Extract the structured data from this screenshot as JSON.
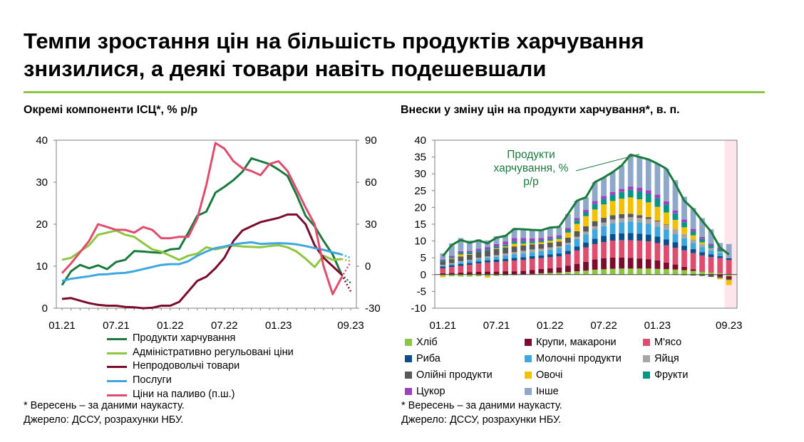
{
  "header": {
    "title_line1": "Темпи зростання цін на більшість продуктів харчування",
    "title_line2": "знизилися, а деякі товари навіть подешевшали"
  },
  "colors": {
    "accent_rule": "#8dc63f",
    "axis": "#7f7f7f",
    "forecast_band": "#fde5ec"
  },
  "chart_data": [
    {
      "type": "line",
      "title": "Окремі компоненти ІСЦ*, % р/р",
      "x_tick_labels": [
        "01.21",
        "07.21",
        "01.22",
        "07.22",
        "01.23",
        "09.23"
      ],
      "x_tick_index": [
        0,
        6,
        12,
        18,
        24,
        32
      ],
      "ylim": [
        0,
        40
      ],
      "y_ticks": [
        "0",
        "10",
        "20",
        "30",
        "40"
      ],
      "y2lim": [
        -30,
        90
      ],
      "y2_ticks": [
        "-30",
        "0",
        "30",
        "60",
        "90"
      ],
      "grid": false,
      "legend_placement": "bottom",
      "series": [
        {
          "name": "Продукти харчування",
          "color": "#1a7a3e",
          "axis": "left",
          "forecast_index": 32,
          "values": [
            5.5,
            8.8,
            10.3,
            9.5,
            10.2,
            9.3,
            11.0,
            11.5,
            13.6,
            13.5,
            13.3,
            13.2,
            14.0,
            14.2,
            18.0,
            22.0,
            23.0,
            27.5,
            28.9,
            30.5,
            32.5,
            35.7,
            35.0,
            34.3,
            33.0,
            31.5,
            27.0,
            22.0,
            19.5,
            16.0,
            12.8,
            8.0,
            6.0
          ]
        },
        {
          "name": "Адміністративно регульовані ціни",
          "color": "#8dc63f",
          "axis": "left",
          "forecast_index": 32,
          "values": [
            11.5,
            12.0,
            13.5,
            15.0,
            17.5,
            18.0,
            18.5,
            17.5,
            17.0,
            15.5,
            14.0,
            13.5,
            12.5,
            11.5,
            12.5,
            13.0,
            14.5,
            14.0,
            14.5,
            14.9,
            14.7,
            14.6,
            14.5,
            14.8,
            15.0,
            14.5,
            13.5,
            11.8,
            9.8,
            12.5,
            11.5,
            11.7,
            11.2
          ]
        },
        {
          "name": "Непродовольчі товари",
          "color": "#7b0c2e",
          "axis": "left",
          "forecast_index": 32,
          "values": [
            2.2,
            2.4,
            1.8,
            1.2,
            0.8,
            0.6,
            0.6,
            0.3,
            0.2,
            0.0,
            0.1,
            0.6,
            0.6,
            1.5,
            4.0,
            6.5,
            7.5,
            9.5,
            12.0,
            16.0,
            18.5,
            19.5,
            20.5,
            21.0,
            21.5,
            22.3,
            22.3,
            20.0,
            15.0,
            12.0,
            10.0,
            8.0,
            4.0
          ]
        },
        {
          "name": "Послуги",
          "color": "#3fa7e0",
          "axis": "left",
          "forecast_index": 32,
          "values": [
            6.5,
            7.0,
            7.3,
            7.6,
            8.0,
            8.1,
            8.3,
            8.4,
            8.8,
            9.3,
            9.8,
            10.3,
            10.5,
            10.5,
            11.2,
            12.5,
            13.5,
            14.3,
            14.7,
            15.2,
            15.5,
            15.7,
            15.3,
            15.4,
            15.5,
            15.4,
            15.2,
            14.8,
            14.3,
            13.9,
            13.3,
            12.8,
            12.0
          ]
        },
        {
          "name": "Ціни на паливо (п.ш.)",
          "color": "#e04c6e",
          "axis": "right",
          "forecast_index": 32,
          "values": [
            -5.0,
            2.0,
            10.0,
            18.0,
            30.0,
            28.0,
            26.0,
            26.0,
            24.0,
            28.0,
            26.0,
            20.0,
            20.0,
            21.0,
            21.0,
            34.0,
            58.0,
            88.0,
            84.0,
            75.0,
            70.0,
            68.0,
            65.0,
            73.0,
            75.0,
            68.0,
            55.0,
            42.0,
            30.0,
            0.0,
            -20.0,
            -8.0,
            3.0
          ]
        }
      ],
      "notes": [
        "* Вересень – за даними наукасту.",
        "Джерело: ДССУ, розрахунки НБУ."
      ]
    },
    {
      "type": "bar",
      "stacked": true,
      "title": "Внески у зміну цін на продукти харчування*, в. п.",
      "x_tick_labels": [
        "01.21",
        "07.21",
        "01.22",
        "07.22",
        "01.23",
        "09.23"
      ],
      "x_tick_index": [
        0,
        6,
        12,
        18,
        24,
        32
      ],
      "ylim": [
        -10,
        40
      ],
      "y_ticks": [
        "-10",
        "-5",
        "0",
        "5",
        "10",
        "15",
        "20",
        "25",
        "30",
        "35",
        "40"
      ],
      "grid": false,
      "forecast_band_from_index": 32,
      "legend_placement": "bottom",
      "line": {
        "name": "Продукти харчування, %",
        "annotation_lines": [
          "Продукти",
          "харчування, %",
          "р/р"
        ],
        "color": "#1a7a3e",
        "values": [
          5.5,
          8.8,
          10.3,
          9.5,
          10.2,
          9.3,
          11.0,
          11.5,
          13.6,
          13.5,
          13.3,
          13.2,
          14.0,
          14.2,
          18.0,
          22.0,
          23.0,
          27.5,
          28.9,
          30.5,
          32.5,
          35.7,
          35.0,
          34.3,
          33.0,
          31.5,
          27.0,
          22.0,
          19.5,
          16.0,
          12.8,
          8.0,
          6.0
        ]
      },
      "series": [
        {
          "name": "Хліб",
          "color": "#8dc63f",
          "values": [
            -0.5,
            -0.5,
            -0.6,
            -0.6,
            -0.5,
            -0.5,
            -0.4,
            -0.3,
            -0.2,
            0.0,
            0.2,
            0.4,
            0.5,
            0.6,
            0.8,
            1.0,
            1.2,
            1.5,
            1.6,
            1.7,
            1.8,
            1.8,
            1.8,
            1.8,
            1.7,
            1.6,
            1.5,
            1.3,
            1.1,
            0.9,
            0.6,
            0.4,
            -0.5
          ]
        },
        {
          "name": "Крупи, макарони",
          "color": "#7b0c2e",
          "values": [
            0.4,
            0.5,
            0.6,
            0.7,
            0.8,
            0.9,
            0.9,
            1.0,
            1.0,
            1.1,
            1.2,
            1.3,
            1.4,
            1.5,
            1.8,
            2.2,
            2.6,
            3.0,
            3.3,
            3.4,
            3.3,
            3.2,
            3.0,
            2.8,
            2.5,
            2.0,
            1.5,
            1.0,
            0.5,
            0.1,
            -0.3,
            -0.6,
            -0.7
          ]
        },
        {
          "name": "М'ясо",
          "color": "#e04c6e",
          "values": [
            1.5,
            1.8,
            2.0,
            2.2,
            2.5,
            2.7,
            2.8,
            3.0,
            3.2,
            3.3,
            3.3,
            3.2,
            3.3,
            3.3,
            3.5,
            4.0,
            4.3,
            4.6,
            4.8,
            5.0,
            5.1,
            5.2,
            5.3,
            5.3,
            5.2,
            5.1,
            5.0,
            4.9,
            4.8,
            4.7,
            4.6,
            4.5,
            4.4
          ]
        },
        {
          "name": "Риба",
          "color": "#0a4f8c",
          "values": [
            0.5,
            0.5,
            0.6,
            0.6,
            0.6,
            0.6,
            0.7,
            0.7,
            0.8,
            0.8,
            0.8,
            0.8,
            0.8,
            0.9,
            1.0,
            1.2,
            1.4,
            1.6,
            1.8,
            2.0,
            2.1,
            2.2,
            2.1,
            2.0,
            1.9,
            1.8,
            1.6,
            1.4,
            1.2,
            1.0,
            0.8,
            0.6,
            0.5
          ]
        },
        {
          "name": "Молочні продукти",
          "color": "#3fa7e0",
          "values": [
            0.3,
            0.4,
            0.5,
            0.6,
            0.7,
            0.8,
            0.9,
            1.0,
            1.0,
            1.1,
            1.2,
            1.3,
            1.4,
            1.5,
            1.8,
            2.2,
            2.5,
            2.8,
            3.0,
            3.2,
            3.3,
            3.4,
            3.3,
            3.2,
            3.0,
            2.8,
            2.5,
            2.2,
            1.8,
            1.5,
            1.2,
            0.9,
            0.0
          ]
        },
        {
          "name": "Яйця",
          "color": "#a6a6a6",
          "values": [
            0.2,
            0.2,
            0.3,
            0.3,
            0.4,
            0.4,
            0.5,
            0.6,
            0.7,
            0.8,
            0.8,
            0.7,
            0.7,
            0.6,
            0.6,
            0.7,
            0.8,
            0.9,
            1.0,
            1.1,
            1.2,
            1.3,
            1.4,
            1.5,
            1.5,
            1.5,
            1.4,
            1.3,
            1.1,
            0.9,
            0.7,
            0.5,
            0.0
          ]
        },
        {
          "name": "Олійні продукти",
          "color": "#595959",
          "values": [
            1.0,
            1.2,
            1.4,
            1.5,
            1.6,
            1.7,
            1.8,
            1.8,
            1.7,
            1.6,
            1.5,
            1.4,
            1.4,
            1.4,
            1.5,
            1.6,
            1.6,
            1.5,
            1.4,
            1.3,
            1.2,
            1.0,
            0.8,
            0.5,
            0.3,
            0.1,
            -0.1,
            -0.2,
            -0.3,
            -0.4,
            -0.4,
            -0.4,
            -0.4
          ]
        },
        {
          "name": "Овочі",
          "color": "#f5c000",
          "values": [
            -0.3,
            0.2,
            0.6,
            0.2,
            0.0,
            -0.4,
            0.2,
            0.3,
            0.8,
            0.5,
            0.3,
            0.5,
            0.6,
            0.8,
            1.5,
            2.2,
            3.0,
            3.5,
            4.0,
            4.2,
            4.6,
            4.9,
            4.7,
            4.4,
            4.1,
            3.6,
            2.8,
            2.0,
            1.2,
            0.5,
            0.0,
            -0.4,
            -1.5
          ]
        },
        {
          "name": "Фрукти",
          "color": "#009688",
          "values": [
            0.3,
            0.4,
            0.5,
            0.5,
            0.5,
            0.4,
            0.5,
            0.5,
            0.7,
            0.7,
            0.6,
            0.5,
            0.5,
            0.5,
            0.8,
            1.0,
            1.1,
            1.6,
            1.6,
            1.8,
            2.0,
            2.2,
            2.4,
            2.5,
            2.5,
            2.3,
            1.9,
            1.5,
            1.2,
            1.0,
            0.8,
            0.6,
            0.0
          ]
        },
        {
          "name": "Цукор",
          "color": "#a040c0",
          "values": [
            0.3,
            0.4,
            0.5,
            0.5,
            0.6,
            0.7,
            0.8,
            0.9,
            1.0,
            1.0,
            0.9,
            0.8,
            0.7,
            0.6,
            0.6,
            0.7,
            0.8,
            0.9,
            0.9,
            0.9,
            0.9,
            1.0,
            1.1,
            1.1,
            1.1,
            1.0,
            0.9,
            0.8,
            0.7,
            0.6,
            0.5,
            0.4,
            0.0
          ]
        },
        {
          "name": "Інше",
          "color": "#8da8c8",
          "values": [
            1.8,
            3.7,
            3.9,
            3.0,
            2.8,
            2.0,
            2.3,
            2.0,
            2.9,
            2.6,
            2.5,
            2.3,
            2.7,
            2.5,
            4.1,
            5.2,
            3.7,
            5.6,
            5.5,
            5.9,
            7.0,
            9.5,
            9.1,
            9.2,
            9.2,
            9.7,
            9.0,
            6.8,
            6.2,
            5.6,
            4.3,
            1.5,
            4.2
          ]
        }
      ],
      "notes": [
        "* Вересень – за даними наукасту.",
        "Джерело: ДССУ, розрахунки НБУ."
      ]
    }
  ]
}
